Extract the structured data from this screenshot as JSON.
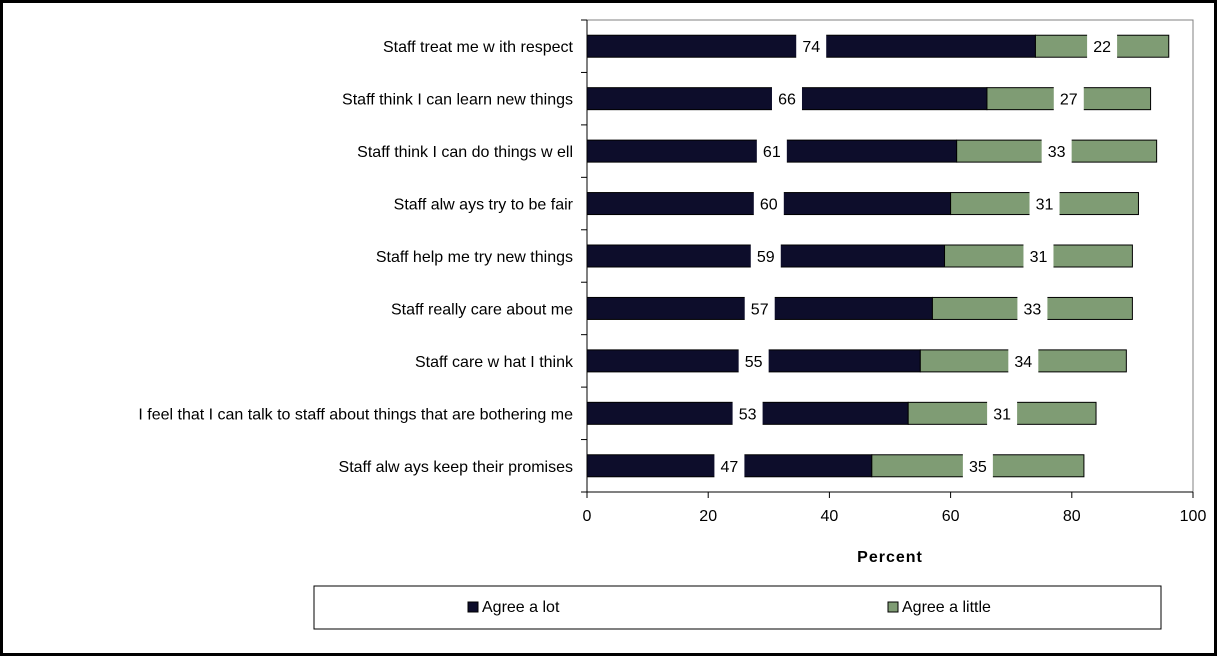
{
  "chart_data": {
    "type": "bar",
    "orientation": "horizontal",
    "stacked": true,
    "categories": [
      "Staff treat me w ith respect",
      "Staff think I can learn new  things",
      "Staff think I can do things w ell",
      "Staff alw ays try to be fair",
      "Staff help me try new  things",
      "Staff really care about me",
      "Staff care w hat I think",
      "I feel that I can talk to staff about things that are bothering me",
      "Staff alw ays keep their promises"
    ],
    "series": [
      {
        "name": "Agree a lot",
        "values": [
          74,
          66,
          61,
          60,
          59,
          57,
          55,
          53,
          47
        ],
        "color": "#0d0d2b"
      },
      {
        "name": "Agree a little",
        "values": [
          22,
          27,
          33,
          31,
          31,
          33,
          34,
          31,
          35
        ],
        "color": "#7f9c74"
      }
    ],
    "xlabel": "Percent",
    "ylabel": "",
    "xlim": [
      0,
      100
    ],
    "xticks": [
      "0",
      "20",
      "40",
      "60",
      "80",
      "100"
    ],
    "grid": false,
    "legend_position": "bottom"
  }
}
